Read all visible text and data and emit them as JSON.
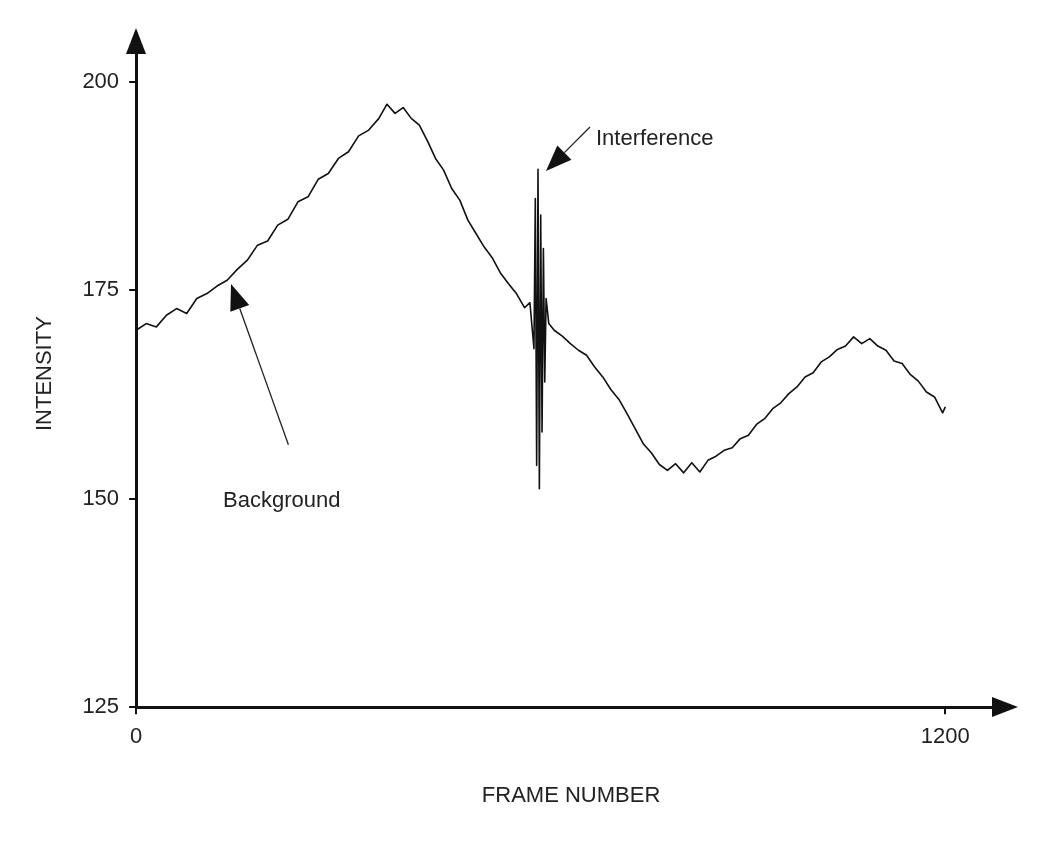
{
  "chart_data": {
    "type": "line",
    "xlabel": "FRAME NUMBER",
    "ylabel": "INTENSITY",
    "xlim": [
      0,
      1290
    ],
    "xticks": [
      0,
      1200
    ],
    "ylim": [
      125,
      205
    ],
    "yticks": [
      125,
      150,
      175,
      200
    ],
    "grid": false,
    "legend": false,
    "marker": "none",
    "line_style": "solid",
    "annotations": [
      {
        "text": "Interference",
        "x": 596,
        "y": 189.5
      },
      "Background"
    ],
    "series": [
      {
        "color": "#111111",
        "x": [
          0,
          15,
          30,
          45,
          60,
          75,
          90,
          105,
          120,
          135,
          150,
          165,
          180,
          195,
          210,
          225,
          240,
          255,
          270,
          285,
          300,
          315,
          330,
          345,
          360,
          372,
          384,
          396,
          408,
          420,
          432,
          444,
          456,
          468,
          480,
          492,
          504,
          516,
          528,
          540,
          552,
          564,
          576,
          584,
          590,
          592,
          594,
          596,
          598,
          600,
          602,
          604,
          606,
          608,
          612,
          620,
          632,
          644,
          656,
          668,
          680,
          692,
          704,
          716,
          728,
          740,
          752,
          764,
          776,
          788,
          800,
          812,
          824,
          836,
          848,
          860,
          872,
          884,
          896,
          908,
          920,
          932,
          944,
          956,
          968,
          980,
          992,
          1004,
          1016,
          1028,
          1040,
          1052,
          1064,
          1076,
          1088,
          1100,
          1112,
          1124,
          1136,
          1148,
          1160,
          1172,
          1184,
          1196,
          1200
        ],
        "values": [
          170.2,
          171,
          170.6,
          172,
          172.8,
          172.2,
          174,
          174.6,
          175.5,
          176.2,
          177.5,
          178.6,
          180.4,
          180.9,
          182.8,
          183.5,
          185.6,
          186.2,
          188.3,
          189,
          190.8,
          191.6,
          193.5,
          194.2,
          195.6,
          197.3,
          196.2,
          196.9,
          195.6,
          194.8,
          192.9,
          190.8,
          189.4,
          187.2,
          185.8,
          183.4,
          181.8,
          180.2,
          178.9,
          177.1,
          175.8,
          174.6,
          172.9,
          173.5,
          168,
          186,
          154,
          189.5,
          151.2,
          184,
          158,
          180,
          164,
          174,
          171,
          170.2,
          169.5,
          168.6,
          167.8,
          167.2,
          165.8,
          164.6,
          163.1,
          161.9,
          160.2,
          158.4,
          156.6,
          155.5,
          154.1,
          153.4,
          154.2,
          153.1,
          154.3,
          153.2,
          154.6,
          155.1,
          155.8,
          156.1,
          157.2,
          157.6,
          158.9,
          159.6,
          160.8,
          161.5,
          162.6,
          163.4,
          164.6,
          165.1,
          166.4,
          167,
          167.9,
          168.3,
          169.4,
          168.6,
          169.2,
          168.3,
          167.8,
          166.5,
          166.2,
          164.9,
          164.1,
          162.8,
          162.2,
          160.3,
          161
        ]
      }
    ]
  }
}
